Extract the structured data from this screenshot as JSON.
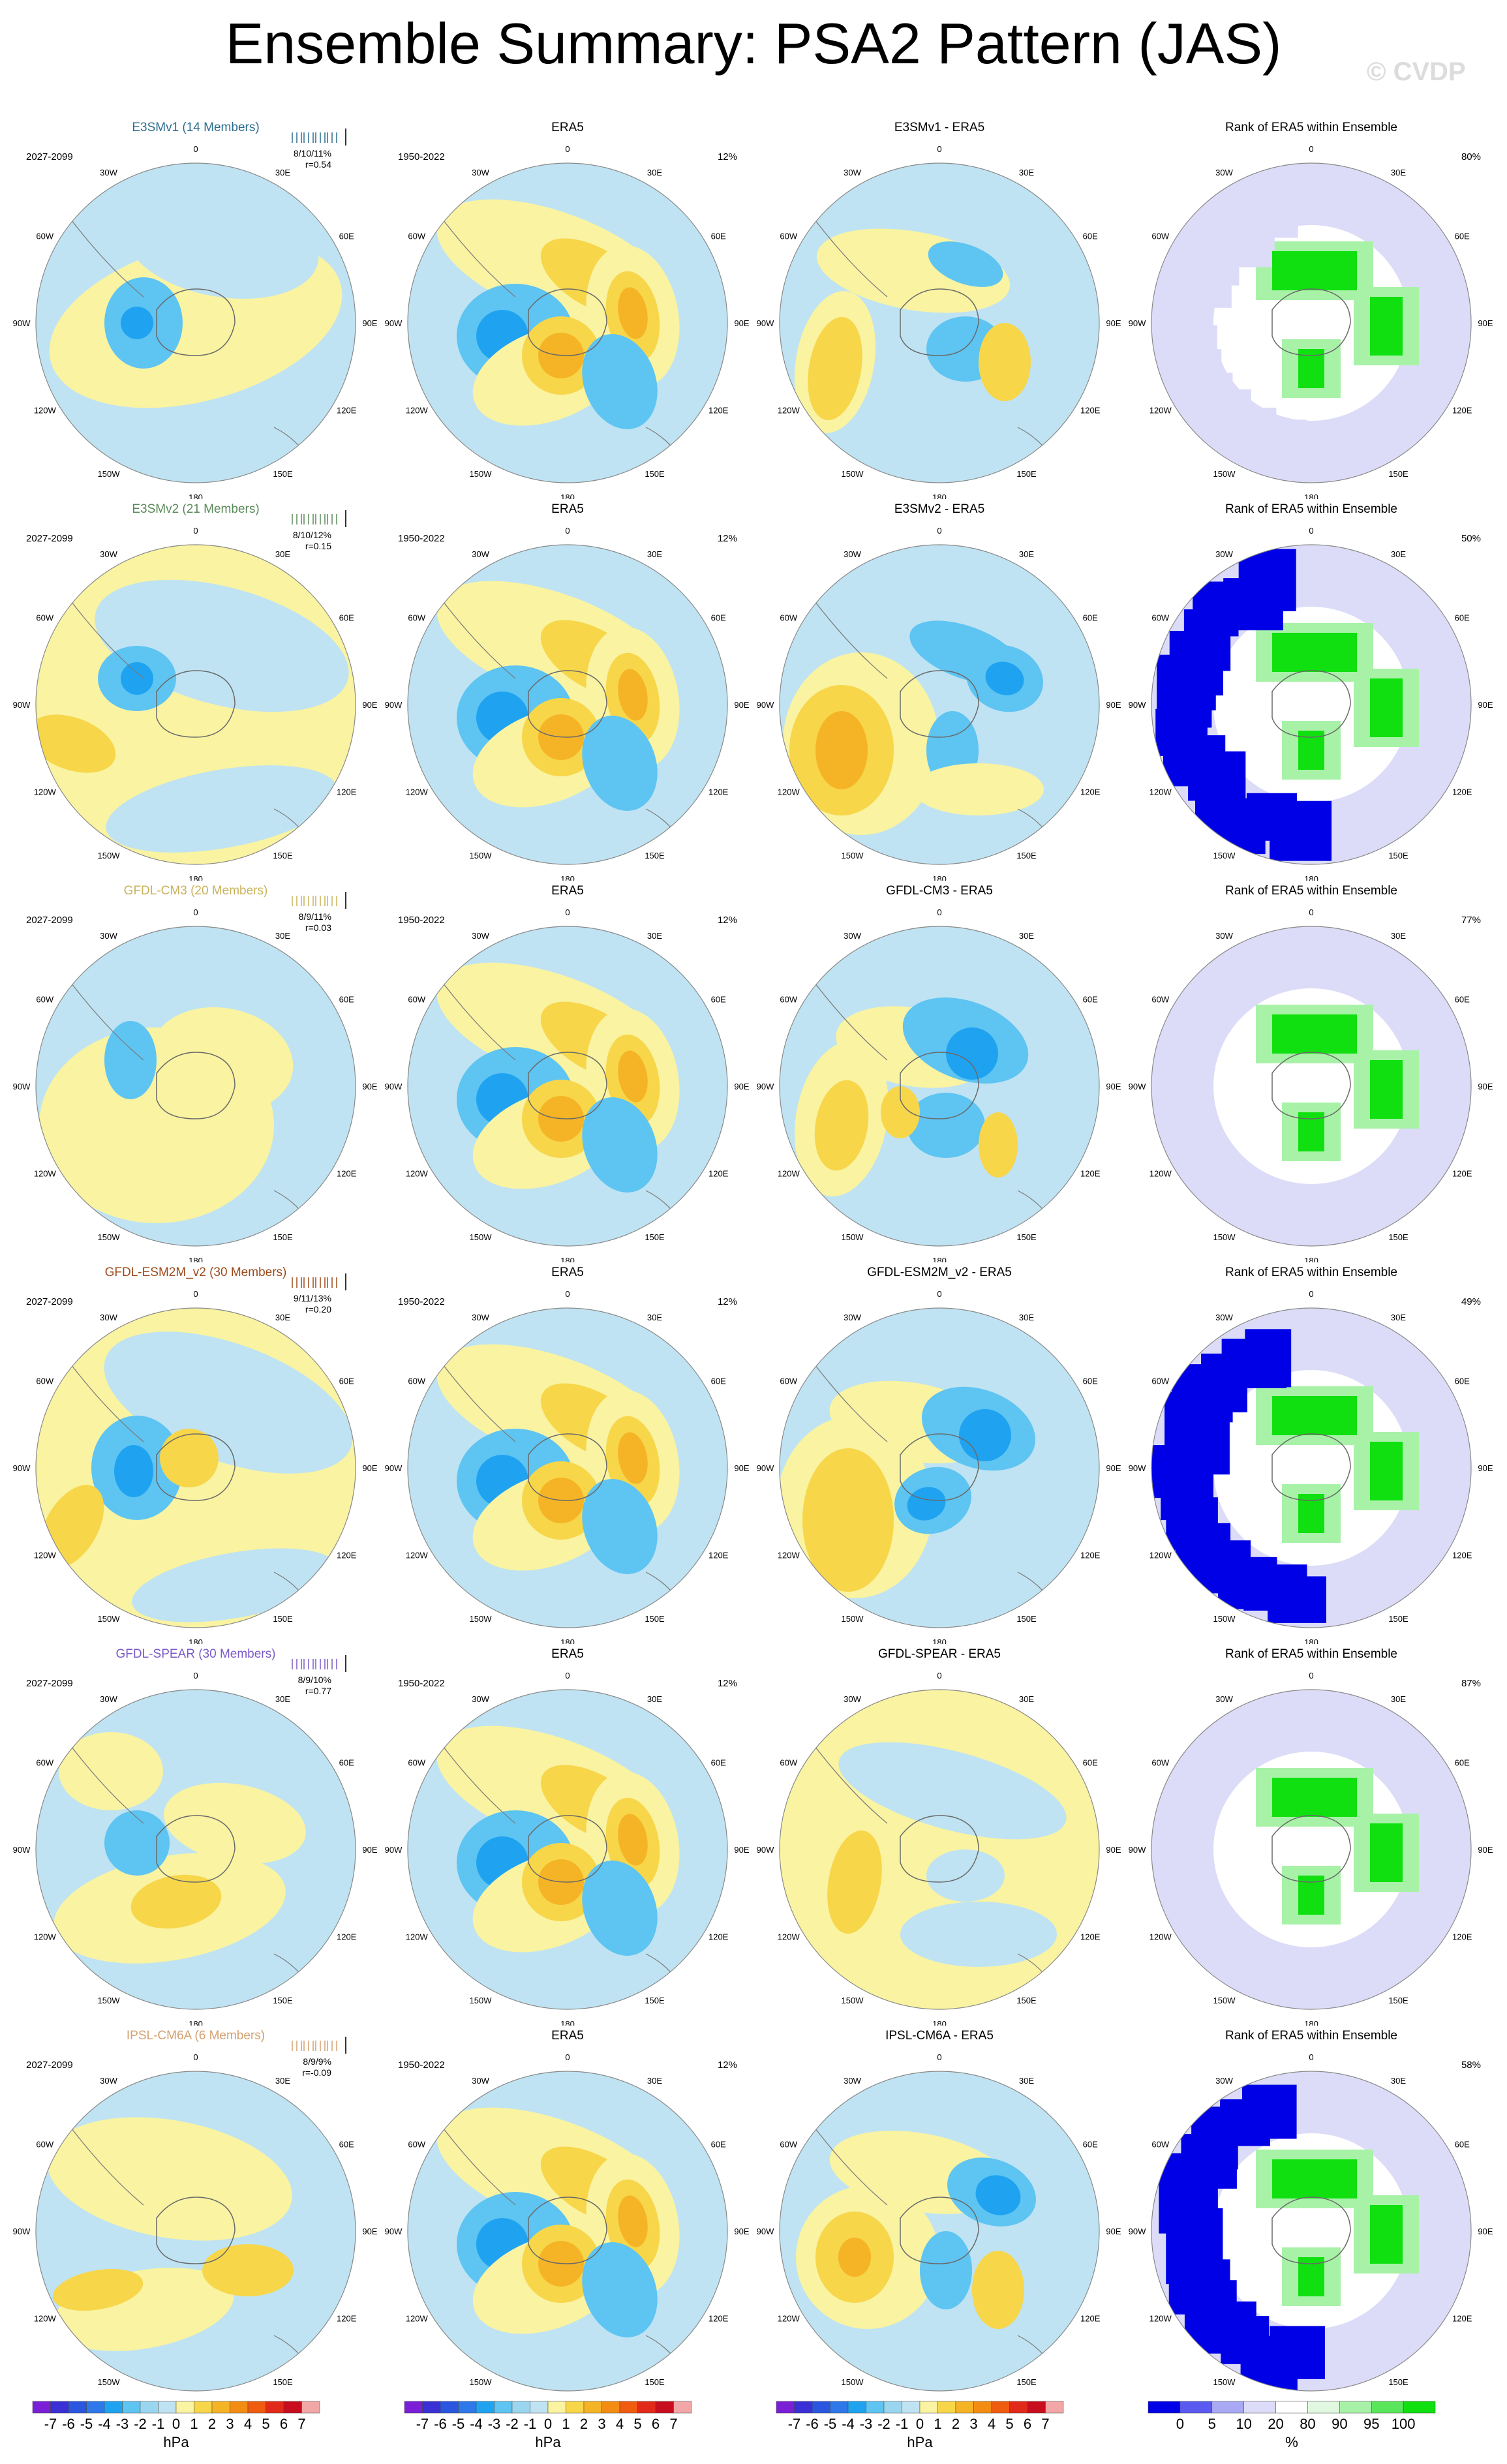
{
  "title": "Ensemble Summary: PSA2 Pattern (JAS)",
  "watermark": "© CVDP",
  "era5_period": "1950-2022",
  "model_period": "2027-2099",
  "era5_title": "ERA5",
  "era5_pct": "12%",
  "rank_title": "Rank of ERA5 within Ensemble",
  "lon_labels": [
    "0",
    "30E",
    "60E",
    "90E",
    "120E",
    "150E",
    "180",
    "150W",
    "120W",
    "90W",
    "60W",
    "30W"
  ],
  "rows": [
    {
      "model": "E3SMv1 (14 Members)",
      "color": "#2b6c8f",
      "stats_pct": "8/10/11%",
      "stats_r": "r=0.54",
      "diff_title": "E3SMv1 - ERA5",
      "rank_pct": "80%"
    },
    {
      "model": "E3SMv2 (21 Members)",
      "color": "#5a8a5a",
      "stats_pct": "8/10/12%",
      "stats_r": "r=0.15",
      "diff_title": "E3SMv2 - ERA5",
      "rank_pct": "50%"
    },
    {
      "model": "GFDL-CM3 (20 Members)",
      "color": "#c8b25a",
      "stats_pct": "8/9/11%",
      "stats_r": "r=0.03",
      "diff_title": "GFDL-CM3 - ERA5",
      "rank_pct": "77%"
    },
    {
      "model": "GFDL-ESM2M_v2 (30 Members)",
      "color": "#9c4a1a",
      "stats_pct": "9/11/13%",
      "stats_r": "r=0.20",
      "diff_title": "GFDL-ESM2M_v2 - ERA5",
      "rank_pct": "49%"
    },
    {
      "model": "GFDL-SPEAR (30 Members)",
      "color": "#7a5bc8",
      "stats_pct": "8/9/10%",
      "stats_r": "r=0.77",
      "diff_title": "GFDL-SPEAR - ERA5",
      "rank_pct": "87%"
    },
    {
      "model": "IPSL-CM6A (6 Members)",
      "color": "#d4a070",
      "stats_pct": "8/9/9%",
      "stats_r": "r=-0.09",
      "diff_title": "IPSL-CM6A - ERA5",
      "rank_pct": "58%"
    }
  ],
  "hpa_colorbar": {
    "units": "hPa",
    "labels": [
      "-7",
      "-6",
      "-5",
      "-4",
      "-3",
      "-2",
      "-1",
      "0",
      "1",
      "2",
      "3",
      "4",
      "5",
      "6",
      "7"
    ],
    "colors": [
      "#7a1fd6",
      "#3b2fd6",
      "#2a56e0",
      "#2f78ea",
      "#1fa3f0",
      "#5ec4f2",
      "#9ad6f0",
      "#bfe3f2",
      "#f9f3a2",
      "#f7d64a",
      "#f5b426",
      "#f28c12",
      "#ef5c10",
      "#e22a1a",
      "#c80e1e",
      "#f2a6a6"
    ]
  },
  "rank_colorbar": {
    "units": "%",
    "labels": [
      "0",
      "5",
      "10",
      "20",
      "80",
      "90",
      "95",
      "100"
    ],
    "colors": [
      "#0000e6",
      "#5a5af0",
      "#a8a8f4",
      "#dcdcf8",
      "#ffffff",
      "#dff8df",
      "#a8f2a8",
      "#5ae65a",
      "#10e010"
    ]
  },
  "chart_data": [
    {
      "type": "heatmap",
      "panel": "E3SMv1 ensemble mean PSA2 pattern",
      "units": "hPa",
      "range": [
        -7,
        7
      ]
    },
    {
      "type": "heatmap",
      "panel": "ERA5 PSA2 pattern",
      "units": "hPa",
      "range": [
        -7,
        7
      ]
    },
    {
      "type": "heatmap",
      "panel": "model minus ERA5 difference",
      "units": "hPa",
      "range": [
        -7,
        7
      ]
    },
    {
      "type": "heatmap",
      "panel": "Rank of ERA5 within Ensemble",
      "units": "%",
      "bins": [
        0,
        5,
        10,
        20,
        80,
        90,
        95,
        100
      ]
    }
  ]
}
